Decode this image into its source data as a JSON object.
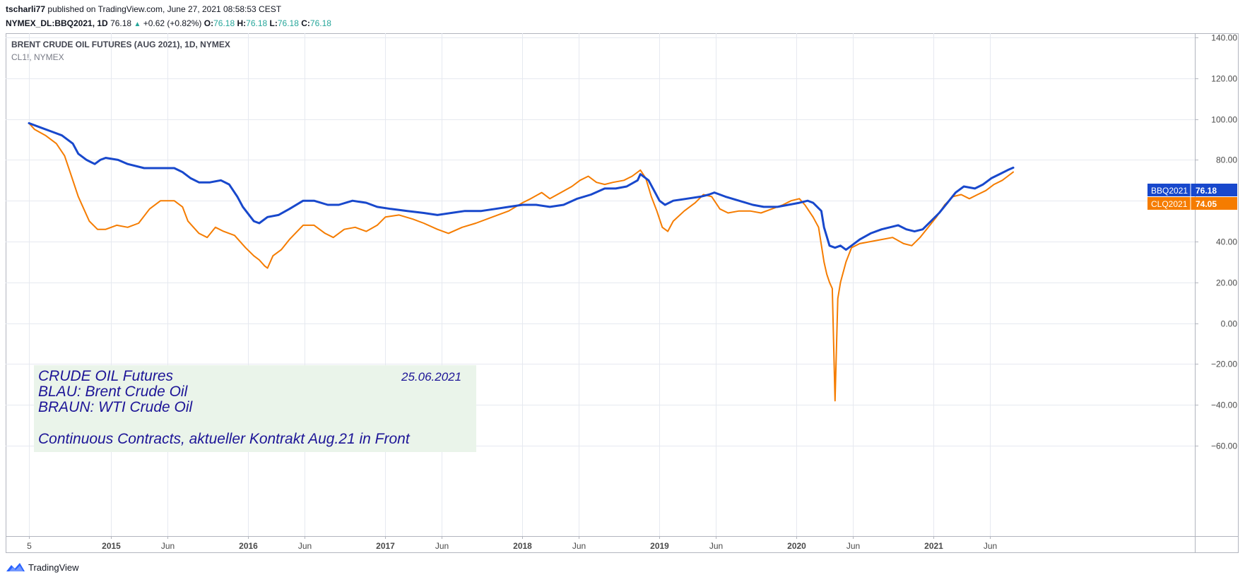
{
  "header": {
    "author": "tscharli77",
    "published_text": "published on TradingView.com, June 27, 2021 08:58:53 CEST",
    "symbol": "NYMEX_DL:BBQ2021, 1D",
    "price": "76.18",
    "change": "+0.62 (+0.82%)",
    "o_label": "O:",
    "o_value": "76.18",
    "h_label": "H:",
    "h_value": "76.18",
    "l_label": "L:",
    "l_value": "76.18",
    "c_label": "C:",
    "c_value": "76.18"
  },
  "legend": {
    "title": "BRENT CRUDE OIL FUTURES (AUG 2021), 1D, NYMEX",
    "subtitle": "CL1!, NYMEX"
  },
  "annotation": {
    "line1": "CRUDE OIL Futures",
    "line2": "BLAU: Brent Crude Oil",
    "line3": "BRAUN: WTI Crude Oil",
    "line4": "Continuous Contracts, aktueller Kontrakt Aug.21 in Front",
    "date": "25.06.2021"
  },
  "price_tags": [
    {
      "symbol": "BBQ2021",
      "value": "76.18",
      "color": "#1848cc"
    },
    {
      "symbol": "CLQ2021",
      "value": "74.05",
      "color": "#f57c00"
    }
  ],
  "footer": {
    "brand": "TradingView"
  },
  "colors": {
    "brent": "#1848cc",
    "wti": "#f57c00",
    "grid": "#e6e9f0",
    "axis_text": "#4a4a4a",
    "annotation_text": "#1d1597",
    "annotation_bg": "#eaf4ea"
  },
  "chart_data": {
    "type": "line",
    "ylim": [
      -70,
      145
    ],
    "xlim": [
      2014.36,
      2021.92
    ],
    "y_ticks": [
      140,
      120,
      100,
      80,
      60,
      40,
      20,
      0,
      -20,
      -40,
      -60
    ],
    "y_tick_labels": [
      "140.00",
      "120.00",
      "100.00",
      "80.00",
      "60.00",
      "40.00",
      "20.00",
      "0.00",
      "−20.00",
      "−40.00",
      "−60.00"
    ],
    "x_ticks": [
      {
        "t": 2014.4,
        "label": "5",
        "bold": false
      },
      {
        "t": 2015.0,
        "label": "2015",
        "bold": true
      },
      {
        "t": 2015.41,
        "label": "Jun",
        "bold": false
      },
      {
        "t": 2016.0,
        "label": "2016",
        "bold": true
      },
      {
        "t": 2016.41,
        "label": "Jun",
        "bold": false
      },
      {
        "t": 2017.0,
        "label": "2017",
        "bold": true
      },
      {
        "t": 2017.41,
        "label": "Jun",
        "bold": false
      },
      {
        "t": 2018.0,
        "label": "2018",
        "bold": true
      },
      {
        "t": 2018.41,
        "label": "Jun",
        "bold": false
      },
      {
        "t": 2019.0,
        "label": "2019",
        "bold": true
      },
      {
        "t": 2019.41,
        "label": "Jun",
        "bold": false
      },
      {
        "t": 2020.0,
        "label": "2020",
        "bold": true
      },
      {
        "t": 2020.41,
        "label": "Jun",
        "bold": false
      },
      {
        "t": 2021.0,
        "label": "2021",
        "bold": true
      },
      {
        "t": 2021.41,
        "label": "Jun",
        "bold": false
      }
    ],
    "grid": true,
    "series": [
      {
        "name": "BBQ2021",
        "color": "#1848cc",
        "points": [
          [
            2014.4,
            98
          ],
          [
            2014.48,
            96
          ],
          [
            2014.56,
            94
          ],
          [
            2014.64,
            92
          ],
          [
            2014.72,
            88
          ],
          [
            2014.76,
            83
          ],
          [
            2014.82,
            80
          ],
          [
            2014.88,
            78
          ],
          [
            2014.92,
            80
          ],
          [
            2014.96,
            81
          ],
          [
            2015.05,
            80
          ],
          [
            2015.12,
            78
          ],
          [
            2015.24,
            76
          ],
          [
            2015.35,
            76
          ],
          [
            2015.46,
            76
          ],
          [
            2015.52,
            74
          ],
          [
            2015.58,
            71
          ],
          [
            2015.64,
            69
          ],
          [
            2015.72,
            69
          ],
          [
            2015.8,
            70
          ],
          [
            2015.86,
            68
          ],
          [
            2015.92,
            62
          ],
          [
            2015.96,
            57
          ],
          [
            2016.04,
            50
          ],
          [
            2016.08,
            49
          ],
          [
            2016.14,
            52
          ],
          [
            2016.22,
            53
          ],
          [
            2016.3,
            56
          ],
          [
            2016.4,
            60
          ],
          [
            2016.48,
            60
          ],
          [
            2016.58,
            58
          ],
          [
            2016.66,
            58
          ],
          [
            2016.76,
            60
          ],
          [
            2016.86,
            59
          ],
          [
            2016.94,
            57
          ],
          [
            2017.04,
            56
          ],
          [
            2017.16,
            55
          ],
          [
            2017.28,
            54
          ],
          [
            2017.38,
            53
          ],
          [
            2017.48,
            54
          ],
          [
            2017.58,
            55
          ],
          [
            2017.7,
            55
          ],
          [
            2017.8,
            56
          ],
          [
            2017.9,
            57
          ],
          [
            2018.0,
            58
          ],
          [
            2018.1,
            58
          ],
          [
            2018.2,
            57
          ],
          [
            2018.3,
            58
          ],
          [
            2018.4,
            61
          ],
          [
            2018.5,
            63
          ],
          [
            2018.6,
            66
          ],
          [
            2018.68,
            66
          ],
          [
            2018.76,
            67
          ],
          [
            2018.84,
            70
          ],
          [
            2018.86,
            73
          ],
          [
            2018.92,
            70
          ],
          [
            2018.96,
            65
          ],
          [
            2019.0,
            60
          ],
          [
            2019.04,
            58
          ],
          [
            2019.1,
            60
          ],
          [
            2019.2,
            61
          ],
          [
            2019.3,
            62
          ],
          [
            2019.36,
            63
          ],
          [
            2019.4,
            64
          ],
          [
            2019.48,
            62
          ],
          [
            2019.58,
            60
          ],
          [
            2019.68,
            58
          ],
          [
            2019.76,
            57
          ],
          [
            2019.86,
            57
          ],
          [
            2019.94,
            58
          ],
          [
            2020.02,
            59
          ],
          [
            2020.08,
            60
          ],
          [
            2020.12,
            59
          ],
          [
            2020.18,
            55
          ],
          [
            2020.2,
            47
          ],
          [
            2020.24,
            38
          ],
          [
            2020.28,
            37
          ],
          [
            2020.32,
            38
          ],
          [
            2020.36,
            36
          ],
          [
            2020.4,
            38
          ],
          [
            2020.46,
            41
          ],
          [
            2020.54,
            44
          ],
          [
            2020.62,
            46
          ],
          [
            2020.68,
            47
          ],
          [
            2020.74,
            48
          ],
          [
            2020.8,
            46
          ],
          [
            2020.86,
            45
          ],
          [
            2020.92,
            46
          ],
          [
            2020.98,
            50
          ],
          [
            2021.04,
            54
          ],
          [
            2021.1,
            59
          ],
          [
            2021.16,
            64
          ],
          [
            2021.22,
            67
          ],
          [
            2021.3,
            66
          ],
          [
            2021.36,
            68
          ],
          [
            2021.42,
            71
          ],
          [
            2021.48,
            73
          ],
          [
            2021.54,
            75
          ],
          [
            2021.58,
            76.18
          ]
        ]
      },
      {
        "name": "CLQ2021",
        "color": "#f57c00",
        "points": [
          [
            2014.4,
            98
          ],
          [
            2014.44,
            95
          ],
          [
            2014.52,
            92
          ],
          [
            2014.6,
            88
          ],
          [
            2014.66,
            82
          ],
          [
            2014.7,
            74
          ],
          [
            2014.76,
            62
          ],
          [
            2014.8,
            56
          ],
          [
            2014.84,
            50
          ],
          [
            2014.9,
            46
          ],
          [
            2014.96,
            46
          ],
          [
            2015.04,
            48
          ],
          [
            2015.12,
            47
          ],
          [
            2015.2,
            49
          ],
          [
            2015.28,
            56
          ],
          [
            2015.36,
            60
          ],
          [
            2015.46,
            60
          ],
          [
            2015.52,
            57
          ],
          [
            2015.56,
            50
          ],
          [
            2015.64,
            44
          ],
          [
            2015.7,
            42
          ],
          [
            2015.76,
            47
          ],
          [
            2015.82,
            45
          ],
          [
            2015.9,
            43
          ],
          [
            2015.98,
            37
          ],
          [
            2016.04,
            33
          ],
          [
            2016.08,
            31
          ],
          [
            2016.12,
            28
          ],
          [
            2016.14,
            27
          ],
          [
            2016.18,
            33
          ],
          [
            2016.24,
            36
          ],
          [
            2016.3,
            41
          ],
          [
            2016.4,
            48
          ],
          [
            2016.48,
            48
          ],
          [
            2016.56,
            44
          ],
          [
            2016.62,
            42
          ],
          [
            2016.7,
            46
          ],
          [
            2016.78,
            47
          ],
          [
            2016.86,
            45
          ],
          [
            2016.94,
            48
          ],
          [
            2017.0,
            52
          ],
          [
            2017.1,
            53
          ],
          [
            2017.2,
            51
          ],
          [
            2017.28,
            49
          ],
          [
            2017.38,
            46
          ],
          [
            2017.46,
            44
          ],
          [
            2017.56,
            47
          ],
          [
            2017.66,
            49
          ],
          [
            2017.78,
            52
          ],
          [
            2017.9,
            55
          ],
          [
            2018.0,
            59
          ],
          [
            2018.06,
            61
          ],
          [
            2018.14,
            64
          ],
          [
            2018.2,
            61
          ],
          [
            2018.28,
            64
          ],
          [
            2018.36,
            67
          ],
          [
            2018.42,
            70
          ],
          [
            2018.48,
            72
          ],
          [
            2018.54,
            69
          ],
          [
            2018.6,
            68
          ],
          [
            2018.66,
            69
          ],
          [
            2018.74,
            70
          ],
          [
            2018.8,
            72
          ],
          [
            2018.86,
            75
          ],
          [
            2018.9,
            71
          ],
          [
            2018.94,
            62
          ],
          [
            2018.98,
            55
          ],
          [
            2019.02,
            47
          ],
          [
            2019.06,
            45
          ],
          [
            2019.1,
            50
          ],
          [
            2019.18,
            55
          ],
          [
            2019.26,
            59
          ],
          [
            2019.32,
            63
          ],
          [
            2019.38,
            62
          ],
          [
            2019.44,
            56
          ],
          [
            2019.5,
            54
          ],
          [
            2019.58,
            55
          ],
          [
            2019.66,
            55
          ],
          [
            2019.74,
            54
          ],
          [
            2019.82,
            56
          ],
          [
            2019.9,
            58
          ],
          [
            2019.96,
            60
          ],
          [
            2020.02,
            61
          ],
          [
            2020.06,
            58
          ],
          [
            2020.12,
            52
          ],
          [
            2020.16,
            47
          ],
          [
            2020.2,
            30
          ],
          [
            2020.22,
            24
          ],
          [
            2020.24,
            20
          ],
          [
            2020.26,
            17
          ],
          [
            2020.28,
            -38
          ],
          [
            2020.3,
            12
          ],
          [
            2020.32,
            20
          ],
          [
            2020.36,
            30
          ],
          [
            2020.4,
            37
          ],
          [
            2020.46,
            39
          ],
          [
            2020.54,
            40
          ],
          [
            2020.62,
            41
          ],
          [
            2020.7,
            42
          ],
          [
            2020.78,
            39
          ],
          [
            2020.84,
            38
          ],
          [
            2020.9,
            42
          ],
          [
            2020.96,
            47
          ],
          [
            2021.02,
            52
          ],
          [
            2021.08,
            58
          ],
          [
            2021.14,
            62
          ],
          [
            2021.2,
            63
          ],
          [
            2021.26,
            61
          ],
          [
            2021.32,
            63
          ],
          [
            2021.38,
            65
          ],
          [
            2021.44,
            68
          ],
          [
            2021.5,
            70
          ],
          [
            2021.54,
            72
          ],
          [
            2021.58,
            74.05
          ]
        ]
      }
    ]
  }
}
